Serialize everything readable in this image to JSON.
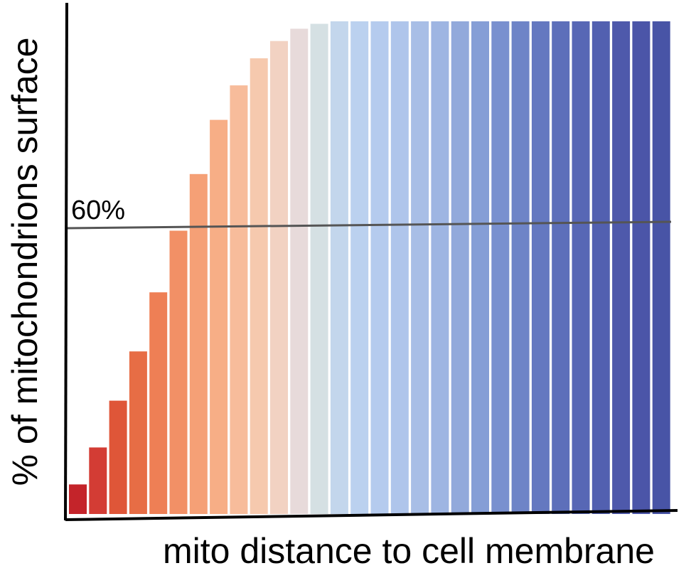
{
  "chart_data": {
    "type": "bar",
    "title": "",
    "xlabel": "mito distance to cell membrane",
    "ylabel": "% of mitochondrions surface",
    "ylim": [
      0,
      100
    ],
    "grid": false,
    "legend": "none",
    "values": [
      6,
      13.5,
      23,
      33,
      45,
      57.5,
      69,
      80,
      87,
      92.5,
      96,
      98.5,
      99.5,
      100,
      100,
      100,
      100,
      100,
      100,
      100,
      100,
      100,
      100,
      100,
      100,
      100,
      100,
      100,
      100,
      100
    ],
    "colors": [
      "#c4242a",
      "#d33c34",
      "#df5638",
      "#e76d45",
      "#ee7f55",
      "#f29066",
      "#f5a076",
      "#f7ae86",
      "#f7bc9b",
      "#f6c9ae",
      "#f2d2c2",
      "#e7dada",
      "#d5e0e3",
      "#c3d6ec",
      "#bbd1ef",
      "#b5cbee",
      "#afc5eb",
      "#a8bee6",
      "#9eb5e2",
      "#92a9db",
      "#859ed6",
      "#7990cf",
      "#6e84c7",
      "#6478c0",
      "#5d6fba",
      "#5767b5",
      "#5260b0",
      "#4e59ab",
      "#4b55a8",
      "#4854a6"
    ],
    "annotations": [
      {
        "text": "60%",
        "y": 60
      }
    ]
  }
}
